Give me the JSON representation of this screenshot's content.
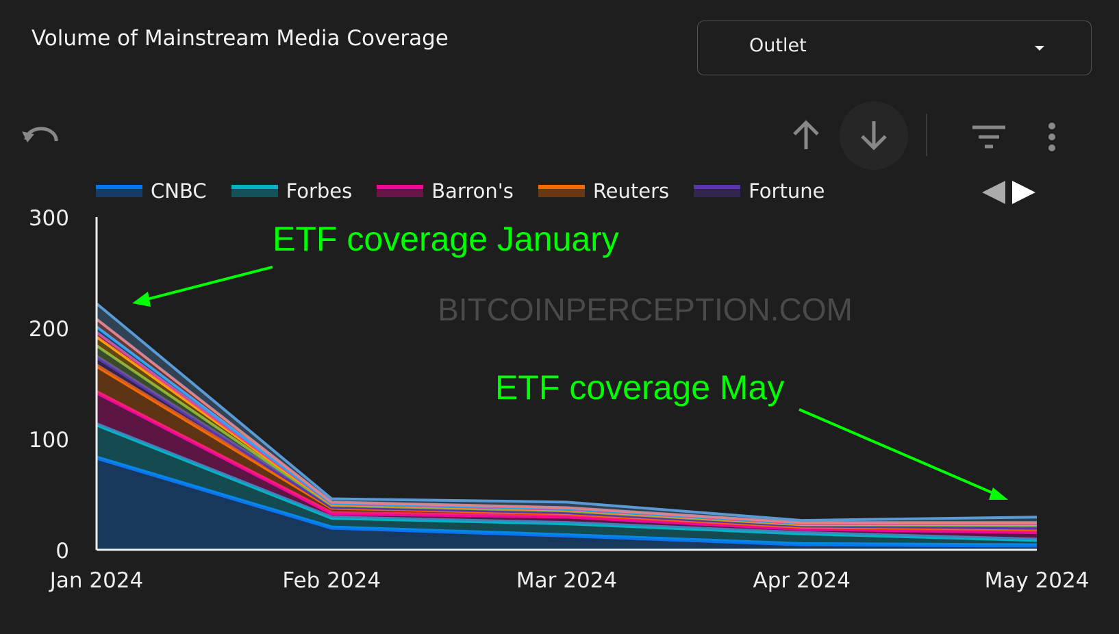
{
  "header": {
    "title": "Volume of Mainstream Media Coverage",
    "dropdown_label": "Outlet"
  },
  "toolbar": {
    "icons": [
      "undo-icon",
      "arrow-up-icon",
      "arrow-down-icon",
      "filter-icon",
      "more-vert-icon"
    ]
  },
  "watermark": "BITCOINPERCEPTION.COM",
  "annotations": {
    "january": "ETF coverage January",
    "may": "ETF coverage May",
    "color": "#00ff00"
  },
  "chart_data": {
    "type": "area",
    "stacked": true,
    "title": "Volume of Mainstream Media Coverage",
    "categories": [
      "Jan 2024",
      "Feb 2024",
      "Mar 2024",
      "Apr 2024",
      "May 2024"
    ],
    "ylim": [
      0,
      300
    ],
    "yticks": [
      "0",
      "100",
      "200",
      "300"
    ],
    "legend_position": "top",
    "series": [
      {
        "name": "CNBC",
        "color": "#0a74f0",
        "values": [
          83,
          20,
          13,
          5,
          4
        ]
      },
      {
        "name": "Forbes",
        "color": "#00b4c8",
        "values": [
          30,
          9,
          11,
          10,
          5
        ]
      },
      {
        "name": "Barron's",
        "color": "#f0069a",
        "values": [
          29,
          4,
          6,
          4,
          7
        ]
      },
      {
        "name": "Reuters",
        "color": "#f56a00",
        "values": [
          24,
          5,
          3,
          2,
          3
        ]
      },
      {
        "name": "Fortune",
        "color": "#5a35b0",
        "values": [
          8,
          1,
          1,
          1,
          1
        ]
      },
      {
        "color": "#7cb342",
        "values": [
          10,
          1,
          1,
          0.5,
          2
        ]
      },
      {
        "color": "#ffa500",
        "values": [
          8,
          1,
          1,
          0.5,
          1
        ]
      },
      {
        "color": "#e84393",
        "values": [
          4,
          0.5,
          0.5,
          0.5,
          0.5
        ]
      },
      {
        "color": "#1ea7ff",
        "values": [
          5,
          0.5,
          0.5,
          0.5,
          0.5
        ]
      },
      {
        "color": "#f08080",
        "values": [
          7,
          1,
          1,
          0.5,
          0.5
        ]
      },
      {
        "color": "#5b9bd5",
        "values": [
          14,
          3,
          5,
          2,
          5
        ]
      }
    ]
  }
}
